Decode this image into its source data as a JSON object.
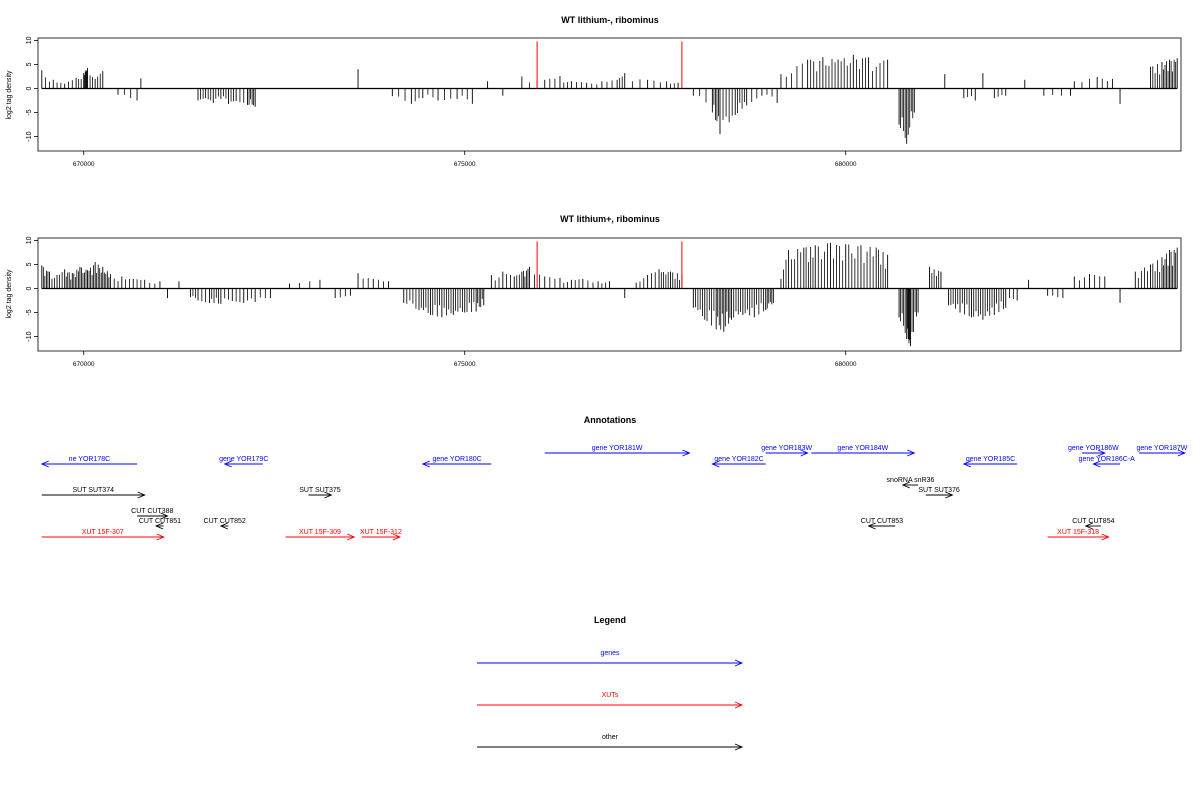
{
  "chart_data": [
    {
      "type": "bar",
      "title": "WT lithium-, ribominus",
      "ylabel": "log2 tag density",
      "xlim": [
        669400,
        684400
      ],
      "ylim": [
        -13,
        10.5
      ],
      "yticks": [
        10,
        5,
        0,
        -5,
        -10
      ],
      "xticks": [
        670000,
        675000,
        680000
      ],
      "baseline": 0,
      "grid": false,
      "series": [
        {
          "values": [
            [
              669450,
              3.8
            ],
            [
              669600,
              1.8
            ],
            [
              669750,
              1.0
            ],
            [
              669900,
              2.2
            ],
            [
              670000,
              3.2
            ],
            [
              670050,
              4.3
            ],
            [
              670150,
              2.0
            ],
            [
              670250,
              3.6
            ],
            [
              670450,
              -1.3
            ],
            [
              670700,
              -2.5
            ],
            [
              670750,
              2.1
            ],
            [
              671500,
              -2.5
            ],
            [
              671600,
              -2.0
            ],
            [
              671700,
              -3.0
            ],
            [
              671800,
              -2.2
            ],
            [
              671900,
              -3.2
            ],
            [
              672000,
              -2.6
            ],
            [
              672150,
              -3.4
            ],
            [
              672250,
              -3.8
            ],
            [
              673600,
              4.0
            ],
            [
              674050,
              -1.6
            ],
            [
              674300,
              -3.2
            ],
            [
              674450,
              -2.0
            ],
            [
              674650,
              -2.5
            ],
            [
              674900,
              -2.2
            ],
            [
              675100,
              -3.2
            ],
            [
              675300,
              1.5
            ],
            [
              675500,
              -1.5
            ],
            [
              675750,
              2.5
            ],
            [
              676050,
              1.8
            ],
            [
              676250,
              2.6
            ],
            [
              676400,
              1.5
            ],
            [
              676600,
              1.2
            ],
            [
              676800,
              1.5
            ],
            [
              677000,
              1.8
            ],
            [
              677100,
              3.2
            ],
            [
              677400,
              1.8
            ],
            [
              677650,
              1.5
            ],
            [
              677800,
              1.2
            ],
            [
              678000,
              -1.5
            ],
            [
              678250,
              -5.0
            ],
            [
              678350,
              -9.5
            ],
            [
              678550,
              -5.5
            ],
            [
              678700,
              -3.5
            ],
            [
              678900,
              -1.5
            ],
            [
              679100,
              -3.0
            ],
            [
              679150,
              3.0
            ],
            [
              679500,
              6.0
            ],
            [
              679700,
              6.5
            ],
            [
              679900,
              6.0
            ],
            [
              680100,
              7.0
            ],
            [
              680300,
              6.5
            ],
            [
              680550,
              6.0
            ],
            [
              680700,
              -7.5
            ],
            [
              680800,
              -11.5
            ],
            [
              680900,
              -5.0
            ],
            [
              681300,
              3.0
            ],
            [
              681550,
              -2.0
            ],
            [
              681700,
              -2.5
            ],
            [
              681800,
              3.2
            ],
            [
              681950,
              -2.0
            ],
            [
              682100,
              -1.5
            ],
            [
              682350,
              1.8
            ],
            [
              682600,
              -1.5
            ],
            [
              682950,
              -1.5
            ],
            [
              683000,
              1.5
            ],
            [
              683300,
              2.4
            ],
            [
              683500,
              2.0
            ],
            [
              683600,
              -3.2
            ],
            [
              684000,
              4.5
            ],
            [
              684150,
              5.5
            ],
            [
              684250,
              6.0
            ],
            [
              684350,
              6.3
            ]
          ]
        },
        {
          "name": "",
          "values": [
            [
              675950,
              9.8
            ],
            [
              677850,
              9.8
            ]
          ]
        }
      ]
    },
    {
      "type": "bar",
      "title": "WT lithium+, ribominus",
      "ylabel": "log2 tag density",
      "xlim": [
        669400,
        684400
      ],
      "ylim": [
        -13,
        10.5
      ],
      "yticks": [
        10,
        5,
        0,
        -5,
        -10
      ],
      "xticks": [
        670000,
        675000,
        680000
      ],
      "baseline": 0,
      "grid": false,
      "series": [
        {
          "values": [
            [
              669450,
              4.8
            ],
            [
              669550,
              3.5
            ],
            [
              669650,
              2.8
            ],
            [
              669750,
              4.0
            ],
            [
              669850,
              3.2
            ],
            [
              669950,
              4.5
            ],
            [
              670050,
              3.8
            ],
            [
              670150,
              5.5
            ],
            [
              670250,
              4.5
            ],
            [
              670350,
              3.0
            ],
            [
              670500,
              2.5
            ],
            [
              670650,
              2.0
            ],
            [
              670800,
              1.8
            ],
            [
              671000,
              1.5
            ],
            [
              671100,
              -2.0
            ],
            [
              671250,
              1.5
            ],
            [
              671400,
              -1.8
            ],
            [
              671500,
              -2.5
            ],
            [
              671650,
              -3.0
            ],
            [
              671800,
              -3.2
            ],
            [
              671950,
              -2.6
            ],
            [
              672100,
              -3.0
            ],
            [
              672250,
              -2.8
            ],
            [
              672450,
              -2.0
            ],
            [
              672700,
              1.0
            ],
            [
              673100,
              1.8
            ],
            [
              673300,
              -2.0
            ],
            [
              673500,
              -1.5
            ],
            [
              673600,
              3.2
            ],
            [
              673800,
              2.0
            ],
            [
              674000,
              1.5
            ],
            [
              674200,
              -3.0
            ],
            [
              674400,
              -4.5
            ],
            [
              674550,
              -5.5
            ],
            [
              674700,
              -6.0
            ],
            [
              674850,
              -5.5
            ],
            [
              675000,
              -5.0
            ],
            [
              675150,
              -4.8
            ],
            [
              675250,
              -3.5
            ],
            [
              675350,
              2.8
            ],
            [
              675500,
              3.5
            ],
            [
              675650,
              2.5
            ],
            [
              675750,
              3.5
            ],
            [
              675850,
              4.5
            ],
            [
              676050,
              2.5
            ],
            [
              676250,
              2.2
            ],
            [
              676400,
              1.8
            ],
            [
              676550,
              2.0
            ],
            [
              676750,
              1.5
            ],
            [
              676900,
              1.5
            ],
            [
              677100,
              -2.0
            ],
            [
              677250,
              1.2
            ],
            [
              677400,
              2.8
            ],
            [
              677550,
              4.0
            ],
            [
              677700,
              3.5
            ],
            [
              677850,
              3.0
            ],
            [
              678000,
              -4.0
            ],
            [
              678150,
              -6.5
            ],
            [
              678300,
              -8.5
            ],
            [
              678400,
              -9.0
            ],
            [
              678500,
              -6.5
            ],
            [
              678650,
              -5.5
            ],
            [
              678800,
              -6.0
            ],
            [
              678950,
              -4.5
            ],
            [
              679050,
              -3.0
            ],
            [
              679150,
              2.0
            ],
            [
              679250,
              8.0
            ],
            [
              679450,
              8.5
            ],
            [
              679600,
              9.0
            ],
            [
              679800,
              9.5
            ],
            [
              680000,
              9.2
            ],
            [
              680200,
              9.0
            ],
            [
              680400,
              8.5
            ],
            [
              680550,
              7.0
            ],
            [
              680700,
              -6.0
            ],
            [
              680800,
              -10.5
            ],
            [
              680850,
              -12.0
            ],
            [
              680950,
              -5.0
            ],
            [
              681100,
              4.5
            ],
            [
              681250,
              3.5
            ],
            [
              681350,
              -3.5
            ],
            [
              681500,
              -5.0
            ],
            [
              681650,
              -6.0
            ],
            [
              681800,
              -6.5
            ],
            [
              681950,
              -5.5
            ],
            [
              682100,
              -4.0
            ],
            [
              682250,
              -2.5
            ],
            [
              682400,
              1.8
            ],
            [
              682650,
              -1.5
            ],
            [
              682850,
              -2.0
            ],
            [
              683000,
              2.5
            ],
            [
              683200,
              3.0
            ],
            [
              683400,
              2.5
            ],
            [
              683600,
              -3.0
            ],
            [
              683800,
              3.5
            ],
            [
              684000,
              5.0
            ],
            [
              684150,
              6.5
            ],
            [
              684250,
              8.0
            ],
            [
              684350,
              8.5
            ]
          ]
        },
        {
          "name": "",
          "values": [
            [
              675950,
              9.8
            ],
            [
              677850,
              9.8
            ]
          ]
        }
      ]
    }
  ],
  "annotations": {
    "title": "Annotations",
    "features": [
      {
        "label": "ne YOR178C",
        "kind": "gene",
        "start": 669450,
        "end": 670700,
        "strand": "-",
        "row": 1
      },
      {
        "label": "gene YOR179C",
        "kind": "gene",
        "start": 671850,
        "end": 672350,
        "strand": "-",
        "row": 1
      },
      {
        "label": "gene YOR180C",
        "kind": "gene",
        "start": 674450,
        "end": 675350,
        "strand": "-",
        "row": 1
      },
      {
        "label": "gene YOR181W",
        "kind": "gene",
        "start": 676050,
        "end": 677950,
        "strand": "+",
        "row": 0
      },
      {
        "label": "gene YOR182C",
        "kind": "gene",
        "start": 678250,
        "end": 678950,
        "strand": "-",
        "row": 1
      },
      {
        "label": "gene YOR183W",
        "kind": "gene",
        "start": 678950,
        "end": 679500,
        "strand": "+",
        "row": 0
      },
      {
        "label": "gene YOR184W",
        "kind": "gene",
        "start": 679550,
        "end": 680900,
        "strand": "+",
        "row": 0
      },
      {
        "label": "gene YOR185C",
        "kind": "gene",
        "start": 681550,
        "end": 682250,
        "strand": "-",
        "row": 1
      },
      {
        "label": "gene YOR186W",
        "kind": "gene",
        "start": 683100,
        "end": 683400,
        "strand": "+",
        "row": 0
      },
      {
        "label": "gene YOR186C-A",
        "kind": "gene",
        "start": 683250,
        "end": 683600,
        "strand": "-",
        "row": 1
      },
      {
        "label": "gene YOR187W",
        "kind": "gene",
        "start": 683850,
        "end": 684450,
        "strand": "+",
        "row": 0
      },
      {
        "label": "SUT SUT374",
        "kind": "other",
        "start": 669450,
        "end": 670800,
        "strand": "+",
        "row": 3
      },
      {
        "label": "SUT SUT375",
        "kind": "other",
        "start": 672950,
        "end": 673250,
        "strand": "+",
        "row": 3
      },
      {
        "label": "snoRNA snR36",
        "kind": "other",
        "start": 680750,
        "end": 680950,
        "strand": "-",
        "row": 2
      },
      {
        "label": "SUT SUT376",
        "kind": "other",
        "start": 681050,
        "end": 681400,
        "strand": "+",
        "row": 3
      },
      {
        "label": "CUT CUT388",
        "kind": "other",
        "start": 670700,
        "end": 671100,
        "strand": "+",
        "row": 4
      },
      {
        "label": "CUT CUT851",
        "kind": "other",
        "start": 670950,
        "end": 671050,
        "strand": "-",
        "row": 5
      },
      {
        "label": "CUT CUT852",
        "kind": "other",
        "start": 671800,
        "end": 671900,
        "strand": "-",
        "row": 5
      },
      {
        "label": "CUT CUT853",
        "kind": "other",
        "start": 680300,
        "end": 680650,
        "strand": "-",
        "row": 5
      },
      {
        "label": "CUT CUT854",
        "kind": "other",
        "start": 683150,
        "end": 683350,
        "strand": "-",
        "row": 5
      },
      {
        "label": "XUT 15F-307",
        "kind": "xut",
        "start": 669450,
        "end": 671050,
        "strand": "+",
        "row": 6
      },
      {
        "label": "XUT 15F-309",
        "kind": "xut",
        "start": 672650,
        "end": 673550,
        "strand": "+",
        "row": 6
      },
      {
        "label": "XUT 15F-312",
        "kind": "xut",
        "start": 673650,
        "end": 674150,
        "strand": "+",
        "row": 6
      },
      {
        "label": "XUT 15F-318",
        "kind": "xut",
        "start": 682650,
        "end": 683450,
        "strand": "+",
        "row": 6
      }
    ]
  },
  "legend": {
    "title": "Legend",
    "items": [
      {
        "label": "genes",
        "color": "#0000ff"
      },
      {
        "label": "XUTs",
        "color": "#ff0000"
      },
      {
        "label": "other",
        "color": "#000000"
      }
    ]
  },
  "colors": {
    "gene": "#0000ff",
    "xut": "#ff0000",
    "other": "#000000",
    "signal": "#000000",
    "marker": "#ff0000"
  }
}
